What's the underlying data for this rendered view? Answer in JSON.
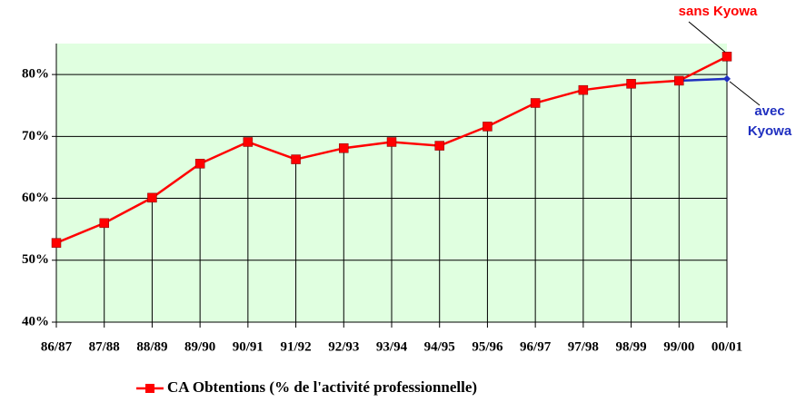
{
  "chart_data": {
    "type": "line",
    "categories": [
      "86/87",
      "87/88",
      "88/89",
      "89/90",
      "90/91",
      "91/92",
      "92/93",
      "93/94",
      "94/95",
      "95/96",
      "96/97",
      "97/98",
      "98/99",
      "99/00",
      "00/01"
    ],
    "series": [
      {
        "name": "CA Obtentions (% de l'activité professionnelle)",
        "color": "#ff0000",
        "marker": "square",
        "values": [
          52.8,
          56.0,
          60.1,
          65.6,
          69.1,
          66.3,
          68.1,
          69.1,
          68.5,
          71.6,
          75.4,
          77.5,
          78.5,
          79.0,
          82.9
        ]
      },
      {
        "color": "#2030c0",
        "marker": "diamond",
        "values": [
          null,
          null,
          null,
          null,
          null,
          null,
          null,
          null,
          null,
          null,
          null,
          null,
          null,
          79.0,
          79.3
        ]
      }
    ],
    "ylim": [
      40,
      85
    ],
    "yticks": [
      {
        "value": 40,
        "label": "40%"
      },
      {
        "value": 50,
        "label": "50%"
      },
      {
        "value": 60,
        "label": "60%"
      },
      {
        "value": 70,
        "label": "70%"
      },
      {
        "value": 80,
        "label": "80%"
      }
    ],
    "grid": true,
    "drop_lines": true,
    "plot_background": "#e0ffe0",
    "legend": "bottom",
    "annotations": [
      {
        "text": "sans Kyowa",
        "color": "#ff0000",
        "series": 0
      },
      {
        "text": "avec Kyowa",
        "color": "#2030c0",
        "series": 1
      }
    ]
  }
}
